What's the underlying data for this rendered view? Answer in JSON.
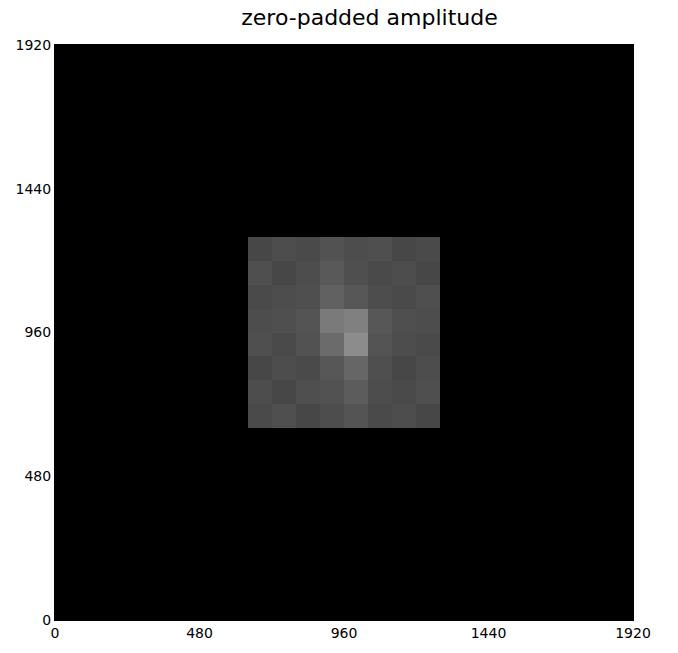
{
  "chart_data": {
    "type": "heatmap",
    "title": "zero-padded amplitude",
    "xlim": [
      0,
      1920
    ],
    "ylim": [
      0,
      1920
    ],
    "xticks": [
      0,
      480,
      960,
      1440,
      1920
    ],
    "yticks": [
      0,
      480,
      960,
      1440,
      1920
    ],
    "zlim": [
      0,
      1
    ],
    "x": [
      40,
      120,
      200,
      280,
      360,
      440,
      520,
      600,
      680,
      760,
      840,
      920,
      1000,
      1080,
      1160,
      1240,
      1320,
      1400,
      1480,
      1560,
      1640,
      1720,
      1800,
      1880
    ],
    "y": [
      40,
      120,
      200,
      280,
      360,
      440,
      520,
      600,
      680,
      760,
      840,
      920,
      1000,
      1080,
      1160,
      1240,
      1320,
      1400,
      1480,
      1560,
      1640,
      1720,
      1800,
      1880
    ],
    "cells": [
      [
        0,
        0,
        0,
        0,
        0,
        0,
        0,
        0,
        0,
        0,
        0,
        0,
        0,
        0,
        0,
        0,
        0,
        0,
        0,
        0,
        0,
        0,
        0,
        0
      ],
      [
        0,
        0,
        0,
        0,
        0,
        0,
        0,
        0,
        0,
        0,
        0,
        0,
        0,
        0,
        0,
        0,
        0,
        0,
        0,
        0,
        0,
        0,
        0,
        0
      ],
      [
        0,
        0,
        0,
        0,
        0,
        0,
        0,
        0,
        0,
        0,
        0,
        0,
        0,
        0,
        0,
        0,
        0,
        0,
        0,
        0,
        0,
        0,
        0,
        0
      ],
      [
        0,
        0,
        0,
        0,
        0,
        0,
        0,
        0,
        0,
        0,
        0,
        0,
        0,
        0,
        0,
        0,
        0,
        0,
        0,
        0,
        0,
        0,
        0,
        0
      ],
      [
        0,
        0,
        0,
        0,
        0,
        0,
        0,
        0,
        0,
        0,
        0,
        0,
        0,
        0,
        0,
        0,
        0,
        0,
        0,
        0,
        0,
        0,
        0,
        0
      ],
      [
        0,
        0,
        0,
        0,
        0,
        0,
        0,
        0,
        0,
        0,
        0,
        0,
        0,
        0,
        0,
        0,
        0,
        0,
        0,
        0,
        0,
        0,
        0,
        0
      ],
      [
        0,
        0,
        0,
        0,
        0,
        0,
        0,
        0,
        0,
        0,
        0,
        0,
        0,
        0,
        0,
        0,
        0,
        0,
        0,
        0,
        0,
        0,
        0,
        0
      ],
      [
        0,
        0,
        0,
        0,
        0,
        0,
        0,
        0,
        0,
        0,
        0,
        0,
        0,
        0,
        0,
        0,
        0,
        0,
        0,
        0,
        0,
        0,
        0,
        0
      ],
      [
        0,
        0,
        0,
        0,
        0,
        0,
        0,
        0,
        0.29,
        0.31,
        0.28,
        0.3,
        0.33,
        0.29,
        0.3,
        0.28,
        0,
        0,
        0,
        0,
        0,
        0,
        0,
        0
      ],
      [
        0,
        0,
        0,
        0,
        0,
        0,
        0,
        0,
        0.3,
        0.28,
        0.31,
        0.32,
        0.36,
        0.3,
        0.29,
        0.31,
        0,
        0,
        0,
        0,
        0,
        0,
        0,
        0
      ],
      [
        0,
        0,
        0,
        0,
        0,
        0,
        0,
        0,
        0.28,
        0.3,
        0.29,
        0.34,
        0.4,
        0.31,
        0.28,
        0.3,
        0,
        0,
        0,
        0,
        0,
        0,
        0,
        0
      ],
      [
        0,
        0,
        0,
        0,
        0,
        0,
        0,
        0,
        0.31,
        0.29,
        0.32,
        0.42,
        0.55,
        0.33,
        0.3,
        0.29,
        0,
        0,
        0,
        0,
        0,
        0,
        0,
        0
      ],
      [
        0,
        0,
        0,
        0,
        0,
        0,
        0,
        0,
        0.3,
        0.31,
        0.33,
        0.48,
        0.5,
        0.34,
        0.31,
        0.3,
        0,
        0,
        0,
        0,
        0,
        0,
        0,
        0
      ],
      [
        0,
        0,
        0,
        0,
        0,
        0,
        0,
        0,
        0.29,
        0.3,
        0.31,
        0.38,
        0.34,
        0.3,
        0.29,
        0.31,
        0,
        0,
        0,
        0,
        0,
        0,
        0,
        0
      ],
      [
        0,
        0,
        0,
        0,
        0,
        0,
        0,
        0,
        0.31,
        0.28,
        0.3,
        0.35,
        0.31,
        0.29,
        0.3,
        0.28,
        0,
        0,
        0,
        0,
        0,
        0,
        0,
        0
      ],
      [
        0,
        0,
        0,
        0,
        0,
        0,
        0,
        0,
        0.28,
        0.3,
        0.29,
        0.32,
        0.3,
        0.31,
        0.28,
        0.29,
        0,
        0,
        0,
        0,
        0,
        0,
        0,
        0
      ],
      [
        0,
        0,
        0,
        0,
        0,
        0,
        0,
        0,
        0,
        0,
        0,
        0,
        0,
        0,
        0,
        0,
        0,
        0,
        0,
        0,
        0,
        0,
        0,
        0
      ],
      [
        0,
        0,
        0,
        0,
        0,
        0,
        0,
        0,
        0,
        0,
        0,
        0,
        0,
        0,
        0,
        0,
        0,
        0,
        0,
        0,
        0,
        0,
        0,
        0
      ],
      [
        0,
        0,
        0,
        0,
        0,
        0,
        0,
        0,
        0,
        0,
        0,
        0,
        0,
        0,
        0,
        0,
        0,
        0,
        0,
        0,
        0,
        0,
        0,
        0
      ],
      [
        0,
        0,
        0,
        0,
        0,
        0,
        0,
        0,
        0,
        0,
        0,
        0,
        0,
        0,
        0,
        0,
        0,
        0,
        0,
        0,
        0,
        0,
        0,
        0
      ],
      [
        0,
        0,
        0,
        0,
        0,
        0,
        0,
        0,
        0,
        0,
        0,
        0,
        0,
        0,
        0,
        0,
        0,
        0,
        0,
        0,
        0,
        0,
        0,
        0
      ],
      [
        0,
        0,
        0,
        0,
        0,
        0,
        0,
        0,
        0,
        0,
        0,
        0,
        0,
        0,
        0,
        0,
        0,
        0,
        0,
        0,
        0,
        0,
        0,
        0
      ],
      [
        0,
        0,
        0,
        0,
        0,
        0,
        0,
        0,
        0,
        0,
        0,
        0,
        0,
        0,
        0,
        0,
        0,
        0,
        0,
        0,
        0,
        0,
        0,
        0
      ],
      [
        0,
        0,
        0,
        0,
        0,
        0,
        0,
        0,
        0,
        0,
        0,
        0,
        0,
        0,
        0,
        0,
        0,
        0,
        0,
        0,
        0,
        0,
        0,
        0
      ]
    ]
  }
}
